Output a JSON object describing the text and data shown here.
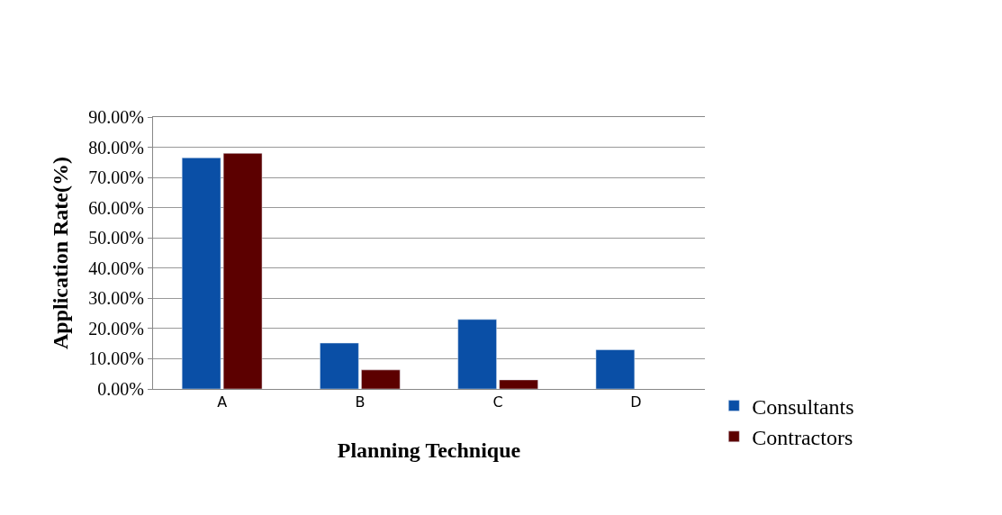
{
  "chart_data": {
    "type": "bar",
    "xlabel": "Planning Technique",
    "ylabel": "Application Rate(%)",
    "categories": [
      "A",
      "B",
      "C",
      "D"
    ],
    "series": [
      {
        "name": "Consultants",
        "color": "#0a4fa6",
        "values": [
          76.5,
          15.2,
          23,
          13
        ]
      },
      {
        "name": "Contractors",
        "color": "#5c0000",
        "values": [
          78,
          6.3,
          3,
          null
        ]
      }
    ],
    "ylim": [
      0,
      90
    ],
    "yticks": [
      {
        "value": 0,
        "label": "0.00%"
      },
      {
        "value": 10,
        "label": "10.00%"
      },
      {
        "value": 20,
        "label": "20.00%"
      },
      {
        "value": 30,
        "label": "30.00%"
      },
      {
        "value": 40,
        "label": "40.00%"
      },
      {
        "value": 50,
        "label": "50.00%"
      },
      {
        "value": 60,
        "label": "60.00%"
      },
      {
        "value": 70,
        "label": "70.00%"
      },
      {
        "value": 80,
        "label": "80.00%"
      },
      {
        "value": 90,
        "label": "90.00%"
      }
    ],
    "grid": "y",
    "legend": "bottom right"
  }
}
